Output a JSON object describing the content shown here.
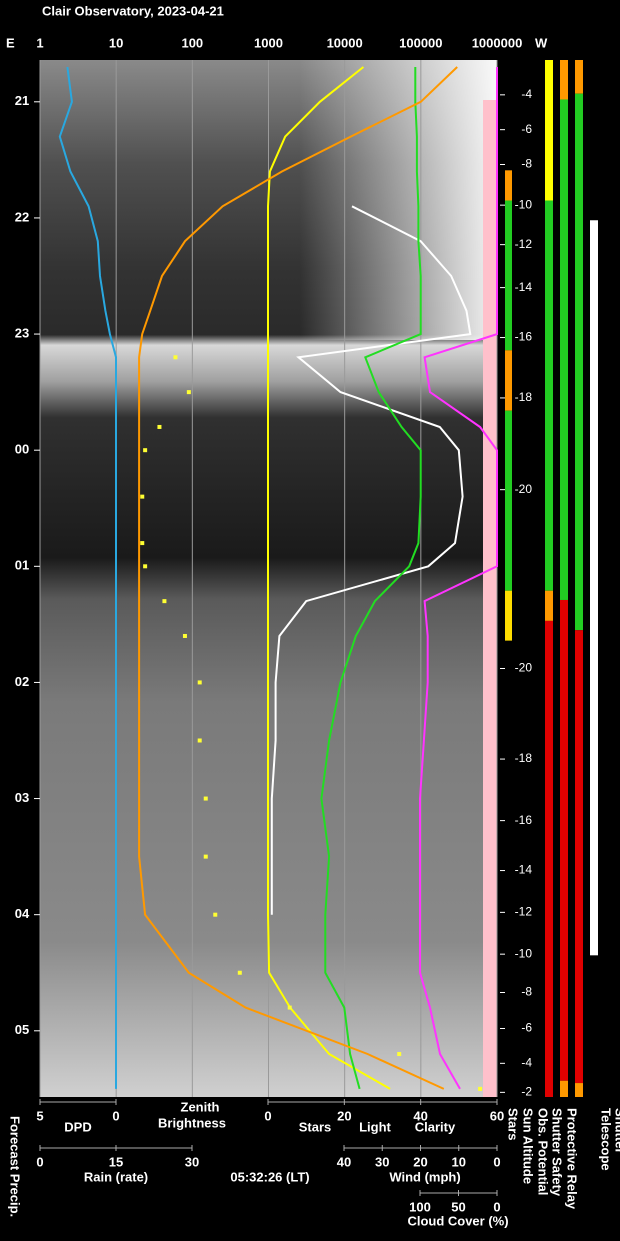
{
  "chart_data": {
    "type": "line",
    "title": "Clair Observatory, 2023-04-21",
    "left_label": "E",
    "right_label": "W",
    "time_label": "05:32:26 (LT)",
    "forecast_label": "Forecast Precip.",
    "ylim": [
      20.64,
      29.57
    ],
    "yticks": [
      21,
      22,
      23,
      {
        "value": 24,
        "label": "00"
      },
      {
        "value": 25,
        "label": "01"
      },
      {
        "value": 26,
        "label": "02"
      },
      {
        "value": 27,
        "label": "03"
      },
      {
        "value": 28,
        "label": "04"
      },
      {
        "value": 29,
        "label": "05"
      }
    ],
    "grid": true,
    "axes": {
      "brightness": {
        "label": [
          "Zenith",
          "Brightness"
        ],
        "color": "#ffff33",
        "log": true,
        "xlim": [
          1,
          1000000
        ],
        "xticks": [
          1,
          10,
          100,
          1000,
          10000,
          100000,
          1000000
        ]
      },
      "stars": {
        "xlim": [
          0,
          60
        ],
        "xticks": [
          0,
          20,
          40,
          60
        ]
      },
      "dpd": {
        "label": "DPD",
        "color": "#29a8e0",
        "xlim": [
          5,
          0
        ],
        "xticks": [
          5,
          0
        ]
      },
      "rain": {
        "label": "Rain (rate)",
        "color": "#33cccc",
        "xlim": [
          0,
          30
        ],
        "xticks": [
          0,
          15,
          30
        ]
      },
      "wind": {
        "label": "Wind (mph)",
        "color": "#ffaaaa",
        "xlim": [
          40,
          0
        ],
        "xticks": [
          40,
          30,
          20,
          10,
          0
        ]
      },
      "cloud": {
        "label": "Cloud Cover (%)",
        "color": "#ff33ff",
        "xlim": [
          100,
          0
        ],
        "xticks": [
          100,
          50,
          0
        ]
      }
    },
    "times": [
      20.7,
      21.0,
      21.3,
      21.6,
      21.9,
      22.2,
      22.5,
      22.8,
      23.0,
      23.2,
      23.5,
      23.8,
      24.0,
      24.4,
      24.8,
      25.0,
      25.3,
      25.6,
      26.0,
      26.5,
      27.0,
      27.5,
      28.0,
      28.5,
      28.8,
      29.2,
      29.5
    ],
    "series": [
      {
        "name": "Stars",
        "color": "#ffffff",
        "axis": "stars",
        "style": "line",
        "values": [
          null,
          null,
          null,
          null,
          22,
          40,
          48,
          52,
          53,
          8,
          19,
          45,
          50,
          51,
          49,
          42,
          10,
          3,
          2,
          2,
          1,
          1,
          1,
          null,
          null,
          null,
          null
        ]
      },
      {
        "name": "Light",
        "color": "#ffff00",
        "axis": "stars",
        "style": "line",
        "values": [
          25,
          13.6,
          4.5,
          0.5,
          0,
          0,
          0,
          0,
          0,
          0,
          0,
          0,
          0,
          0,
          0,
          0,
          0,
          0,
          0,
          0,
          0,
          0,
          0,
          0.3,
          5.8,
          16,
          32
        ]
      },
      {
        "name": "Clarity",
        "color": "#22dd22",
        "axis": "stars",
        "style": "line",
        "values": [
          38.6,
          38.6,
          39,
          39,
          39.4,
          39.4,
          40,
          40,
          40,
          25.5,
          29,
          35,
          40,
          40,
          39.4,
          37,
          28,
          23,
          19,
          16,
          14,
          16,
          15,
          15,
          20,
          21.5,
          24
        ]
      },
      {
        "color": "#ffff33",
        "axis": "brightness",
        "style": "dots",
        "values": [
          null,
          null,
          null,
          null,
          null,
          null,
          null,
          null,
          null,
          60,
          90,
          37,
          24,
          22,
          22,
          24,
          43,
          80,
          125,
          125,
          150,
          150,
          200,
          420,
          1900,
          52000,
          600000
        ]
      },
      {
        "color": "#ff9900",
        "axis": "brightness",
        "style": "line",
        "values": [
          300000,
          100000,
          12000,
          1500,
          250,
          80,
          40,
          28,
          22,
          20,
          20,
          20,
          20,
          20,
          20,
          20,
          20,
          20,
          20,
          20,
          20,
          20,
          24,
          90,
          500,
          20000,
          200000
        ]
      },
      {
        "color": "#29a8e0",
        "axis": "dpd",
        "style": "line",
        "values": [
          3.2,
          2.9,
          3.7,
          3.0,
          1.8,
          1.2,
          1.05,
          0.7,
          0.4,
          0,
          0,
          0,
          0,
          0,
          0,
          0,
          0,
          0,
          0,
          0,
          0,
          0,
          0,
          0,
          0,
          0,
          0
        ]
      },
      {
        "color": "#ff33ff",
        "axis": "cloud",
        "style": "line",
        "values": [
          0,
          0,
          0,
          0,
          0,
          0,
          0,
          0,
          0,
          94,
          87,
          22,
          0,
          0,
          0,
          0,
          94,
          90,
          90,
          95,
          100,
          100,
          100,
          100,
          87,
          74,
          48
        ]
      }
    ],
    "sun_altitude": {
      "label": "Sun Altitude",
      "ticks": [
        {
          "time": 20.94,
          "altitude": -4
        },
        {
          "time": 21.24,
          "altitude": -6
        },
        {
          "time": 21.54,
          "altitude": -8
        },
        {
          "time": 21.89,
          "altitude": -10
        },
        {
          "time": 22.23,
          "altitude": -12
        },
        {
          "time": 22.6,
          "altitude": -14
        },
        {
          "time": 23.03,
          "altitude": -16
        },
        {
          "time": 23.55,
          "altitude": -18
        },
        {
          "time": 24.34,
          "altitude": -20
        },
        {
          "time": 25.88,
          "altitude": -20
        },
        {
          "time": 26.66,
          "altitude": -18
        },
        {
          "time": 27.19,
          "altitude": -16
        },
        {
          "time": 27.62,
          "altitude": -14
        },
        {
          "time": 27.98,
          "altitude": -12
        },
        {
          "time": 28.34,
          "altitude": -10
        },
        {
          "time": 28.67,
          "altitude": -8
        },
        {
          "time": 28.98,
          "altitude": -6
        },
        {
          "time": 29.28,
          "altitude": -4
        },
        {
          "time": 29.53,
          "altitude": -2
        }
      ]
    },
    "status": [
      {
        "label": "Stars",
        "segments": [
          {
            "start": 21.59,
            "end": 21.85,
            "color": "#ff9900"
          },
          {
            "start": 21.85,
            "end": 23.14,
            "color": "#22cc22"
          },
          {
            "start": 23.14,
            "end": 23.66,
            "color": "#ff9900"
          },
          {
            "start": 23.66,
            "end": 25.21,
            "color": "#22cc22"
          },
          {
            "start": 25.21,
            "end": 25.64,
            "color": "#ffdd00"
          }
        ]
      },
      {
        "label": "Obs. Potential",
        "segments": [
          {
            "start": 20.64,
            "end": 21.85,
            "color": "#ffff00"
          },
          {
            "start": 21.85,
            "end": 25.21,
            "color": "#22cc22"
          },
          {
            "start": 25.21,
            "end": 25.47,
            "color": "#ff9900"
          },
          {
            "start": 25.47,
            "end": 29.57,
            "color": "#e00000"
          }
        ]
      },
      {
        "label": "Shutter Safety",
        "segments": [
          {
            "start": 20.64,
            "end": 20.98,
            "color": "#ff9900"
          },
          {
            "start": 20.98,
            "end": 25.29,
            "color": "#22cc22"
          },
          {
            "start": 25.29,
            "end": 29.43,
            "color": "#e00000"
          },
          {
            "start": 29.43,
            "end": 29.57,
            "color": "#ff9900"
          }
        ]
      },
      {
        "label": "Protective Relay",
        "segments": [
          {
            "start": 20.64,
            "end": 20.93,
            "color": "#ff9900"
          },
          {
            "start": 20.93,
            "end": 25.55,
            "color": "#22cc22"
          },
          {
            "start": 25.55,
            "end": 29.45,
            "color": "#e00000"
          },
          {
            "start": 29.45,
            "end": 29.57,
            "color": "#ff9900"
          }
        ]
      },
      {
        "label": [
          "Telescope",
          "Shutter"
        ],
        "segments": [
          {
            "start": 22.02,
            "end": 28.35,
            "color": "#ffffff"
          }
        ]
      }
    ]
  }
}
